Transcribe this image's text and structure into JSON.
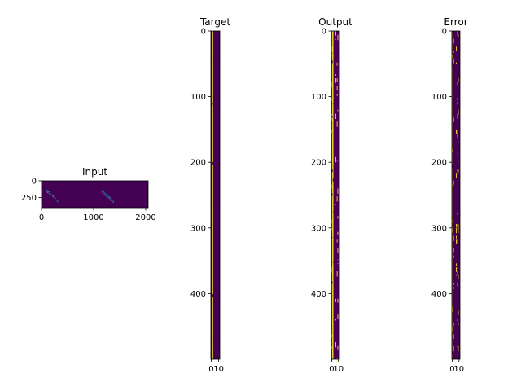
{
  "figure": {
    "background": "#ffffff",
    "colormap": {
      "name": "viridis",
      "low": "#440154",
      "high": "#fde725"
    }
  },
  "chart_data": [
    {
      "type": "heatmap",
      "title": "Input",
      "rows": 400,
      "cols": 2048,
      "xticks": [
        0,
        1000,
        2000
      ],
      "yticks": [
        0,
        250
      ],
      "yaxis_inverted": true,
      "grid": false,
      "active_bands": [
        {
          "row_start": 120,
          "row_end": 330,
          "col_start": 90,
          "col_end": 330
        },
        {
          "row_start": 120,
          "row_end": 330,
          "col_start": 1140,
          "col_end": 1380
        }
      ]
    },
    {
      "type": "heatmap",
      "title": "Target",
      "rows": 500,
      "cols": 12,
      "xticks": [
        0,
        10
      ],
      "yticks": [
        0,
        100,
        200,
        300,
        400
      ],
      "yaxis_inverted": true,
      "grid": false,
      "bright_columns": [
        2
      ]
    },
    {
      "type": "heatmap",
      "title": "Output",
      "rows": 500,
      "cols": 12,
      "xticks": [
        0,
        10
      ],
      "yticks": [
        0,
        100,
        200,
        300,
        400
      ],
      "yaxis_inverted": true,
      "grid": false,
      "bright_columns": [
        1,
        2
      ],
      "sparse_columns": [
        0,
        6,
        8,
        9
      ]
    },
    {
      "type": "heatmap",
      "title": "Error",
      "rows": 500,
      "cols": 12,
      "xticks": [
        0,
        10
      ],
      "yticks": [
        0,
        100,
        200,
        300,
        400
      ],
      "yaxis_inverted": true,
      "grid": false,
      "bright_columns": [
        1
      ],
      "sparse_columns": [
        0,
        2,
        6,
        8,
        9
      ]
    }
  ]
}
